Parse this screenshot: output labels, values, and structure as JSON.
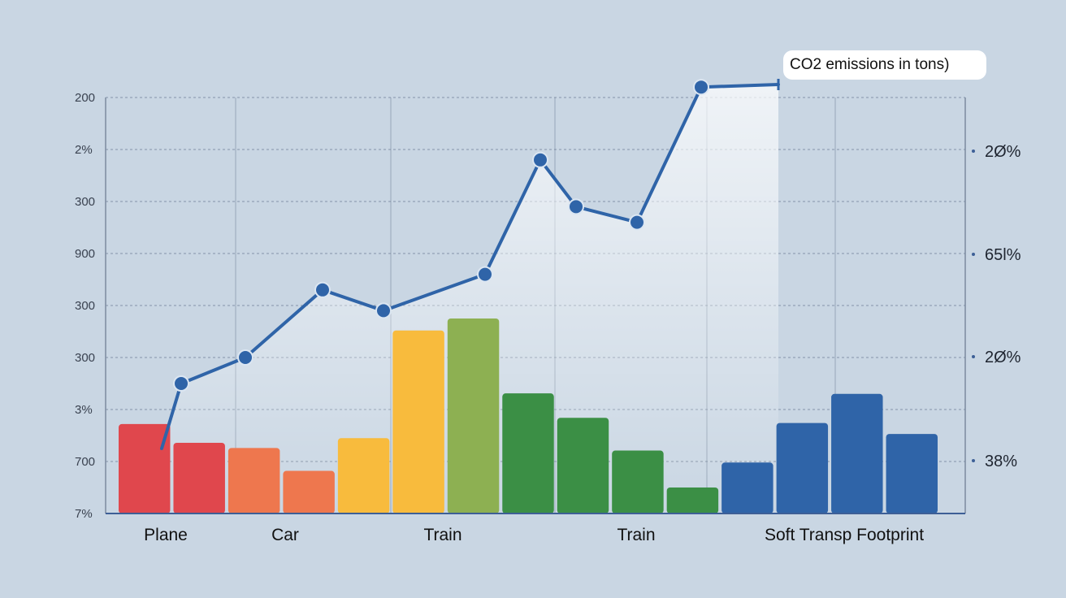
{
  "chart_data": {
    "type": "bar",
    "title": "",
    "xlabel": "",
    "ylabel": "",
    "annotation": "CO2 emissions in tons)",
    "left_tick_labels": [
      "200",
      "2%",
      "300",
      "900",
      "300",
      "300",
      "3%",
      "700",
      "7%"
    ],
    "right_tick_labels": [
      "2Ø%",
      "65l%",
      "2Ø%",
      "38%"
    ],
    "category_labels": [
      "Plane",
      "Car",
      "Train",
      "Train",
      "Soft Transp Footprint"
    ],
    "ylim": [
      0,
      8
    ],
    "bar_series": {
      "values": [
        1.72,
        1.36,
        1.26,
        0.82,
        1.45,
        3.52,
        3.75,
        2.31,
        1.84,
        1.21,
        0.5,
        0.98,
        1.74,
        2.3,
        1.53
      ],
      "colors": [
        "#e0474d",
        "#e0474d",
        "#ee774e",
        "#ee774e",
        "#f8bb3d",
        "#f8bb3d",
        "#8db052",
        "#3b8f45",
        "#3b8f45",
        "#3b8f45",
        "#3b8f45",
        "#2f64a8",
        "#2f64a8",
        "#2f64a8",
        "#2f64a8"
      ]
    },
    "line_series": {
      "values": [
        2.5,
        3.0,
        4.3,
        3.9,
        4.6,
        6.8,
        5.9,
        5.6,
        8.2
      ],
      "end_value": 8.25,
      "color": "#2f64a8"
    },
    "grid": true
  }
}
